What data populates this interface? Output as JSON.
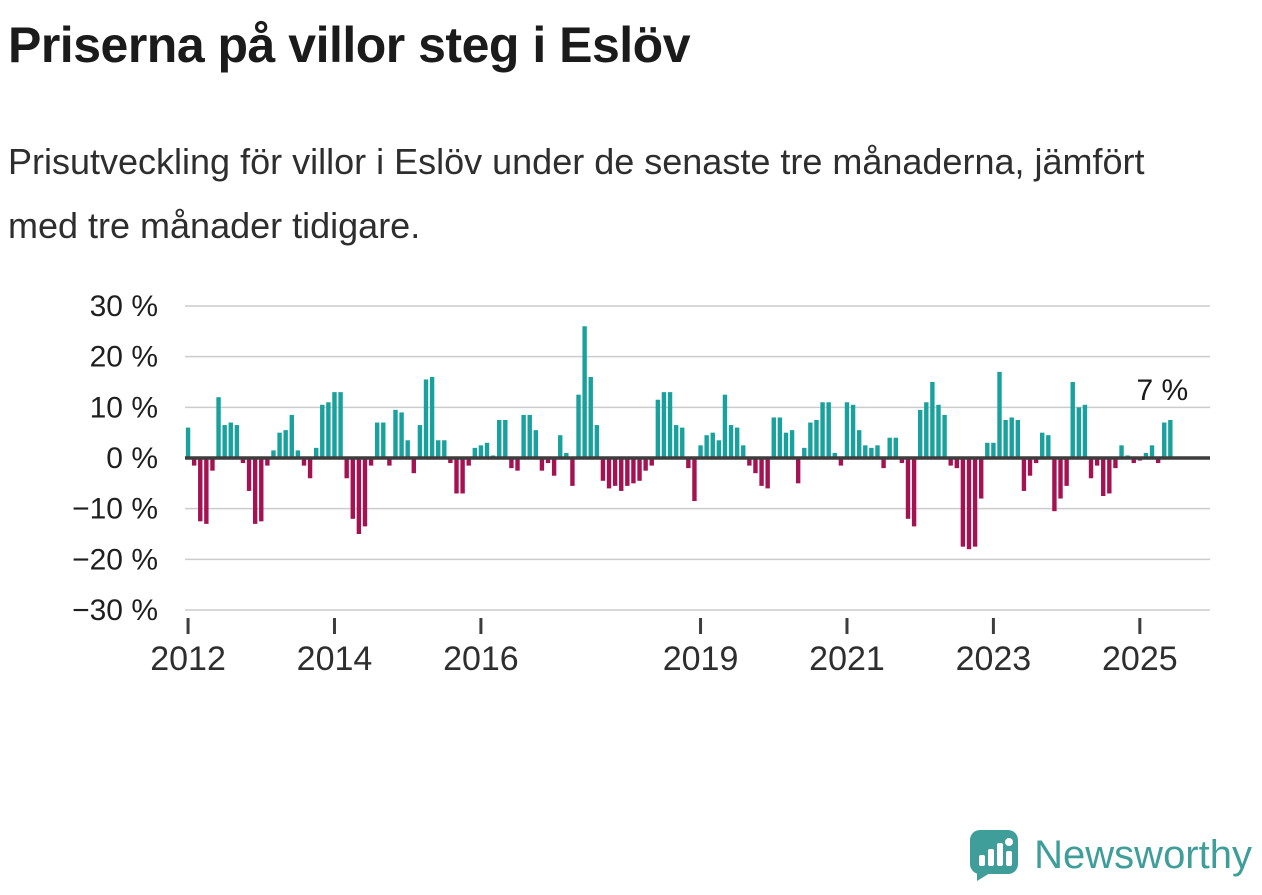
{
  "header": {
    "title": "Priserna på villor steg i Eslöv",
    "subtitle": "Prisutveckling för villor i Eslöv under de senaste tre månaderna, jämfört med tre månader tidigare."
  },
  "branding": {
    "name": "Newsworthy"
  },
  "colors": {
    "positive": "#18a19d",
    "negative": "#a51251",
    "grid": "#cccccc",
    "zero_line": "#3d3d3d",
    "tick": "#3d3d3d",
    "title_text": "#1b1b1b",
    "body_text": "#2e2e2e",
    "brand": "#3f9e99"
  },
  "chart_data": {
    "type": "bar",
    "title": "Priserna på villor steg i Eslöv",
    "subtitle": "Prisutveckling för villor i Eslöv under de senaste tre månaderna, jämfört med tre månader tidigare.",
    "unit": "%",
    "frequency": "monthly",
    "start": "2012-01",
    "ylim": [
      -30,
      30
    ],
    "x_slots": 168,
    "grid": true,
    "annotation": {
      "label": "7 %"
    },
    "yticks": [
      {
        "value": 30,
        "label": "30 %"
      },
      {
        "value": 20,
        "label": "20 %"
      },
      {
        "value": 10,
        "label": "10 %"
      },
      {
        "value": 0,
        "label": "0 %"
      },
      {
        "value": -10,
        "label": "−10 %"
      },
      {
        "value": -20,
        "label": "−20 %"
      },
      {
        "value": -30,
        "label": "−30 %"
      }
    ],
    "xticks": [
      {
        "label": "2012",
        "month_index": 0
      },
      {
        "label": "2014",
        "month_index": 24
      },
      {
        "label": "2016",
        "month_index": 48
      },
      {
        "label": "2019",
        "month_index": 84
      },
      {
        "label": "2021",
        "month_index": 108
      },
      {
        "label": "2023",
        "month_index": 132
      },
      {
        "label": "2025",
        "month_index": 156
      }
    ],
    "values": [
      6,
      -1.5,
      -12.5,
      -13,
      -2.5,
      12,
      6.5,
      7,
      6.5,
      -1,
      -6.5,
      -13,
      -12.5,
      -1.5,
      1.5,
      5,
      5.5,
      8.5,
      1.5,
      -1.5,
      -4,
      2,
      10.5,
      11,
      13,
      13,
      -4,
      -12,
      -15,
      -13.5,
      -1.5,
      7,
      7,
      -1.5,
      9.5,
      9,
      3.5,
      -3,
      6.5,
      15.5,
      16,
      3.5,
      3.5,
      -1,
      -7,
      -7,
      -1.5,
      2,
      2.5,
      3,
      0.5,
      7.5,
      7.5,
      -2,
      -2.5,
      8.5,
      8.5,
      5.5,
      -2.5,
      -1,
      -3.5,
      4.5,
      1,
      -5.5,
      12.5,
      26,
      16,
      6.5,
      -4.5,
      -6,
      -5.5,
      -6.5,
      -5.5,
      -5,
      -4.5,
      -2.5,
      -1.5,
      11.5,
      13,
      13,
      6.5,
      6,
      -2,
      -8.5,
      2.5,
      4.5,
      5,
      3.5,
      12.5,
      6.5,
      6,
      2.5,
      -1.5,
      -3,
      -5.5,
      -6,
      8,
      8,
      5,
      5.5,
      -5,
      2,
      7,
      7.5,
      11,
      11,
      1,
      -1.5,
      11,
      10.5,
      5.5,
      2.5,
      2,
      2.5,
      -2,
      4,
      4,
      -1,
      -12,
      -13.5,
      9.5,
      11,
      15,
      10.5,
      8.5,
      -1.5,
      -2,
      -17.5,
      -18,
      -17.5,
      -8,
      3,
      3,
      17,
      7.5,
      8,
      7.5,
      -6.5,
      -3.5,
      -1,
      5,
      4.5,
      -10.5,
      -8,
      -5.5,
      15,
      10,
      10.5,
      -4,
      -1.5,
      -7.5,
      -7,
      -2,
      2.5,
      0.5,
      -1,
      -0.5,
      1,
      2.5,
      -1,
      7,
      7.5
    ]
  }
}
